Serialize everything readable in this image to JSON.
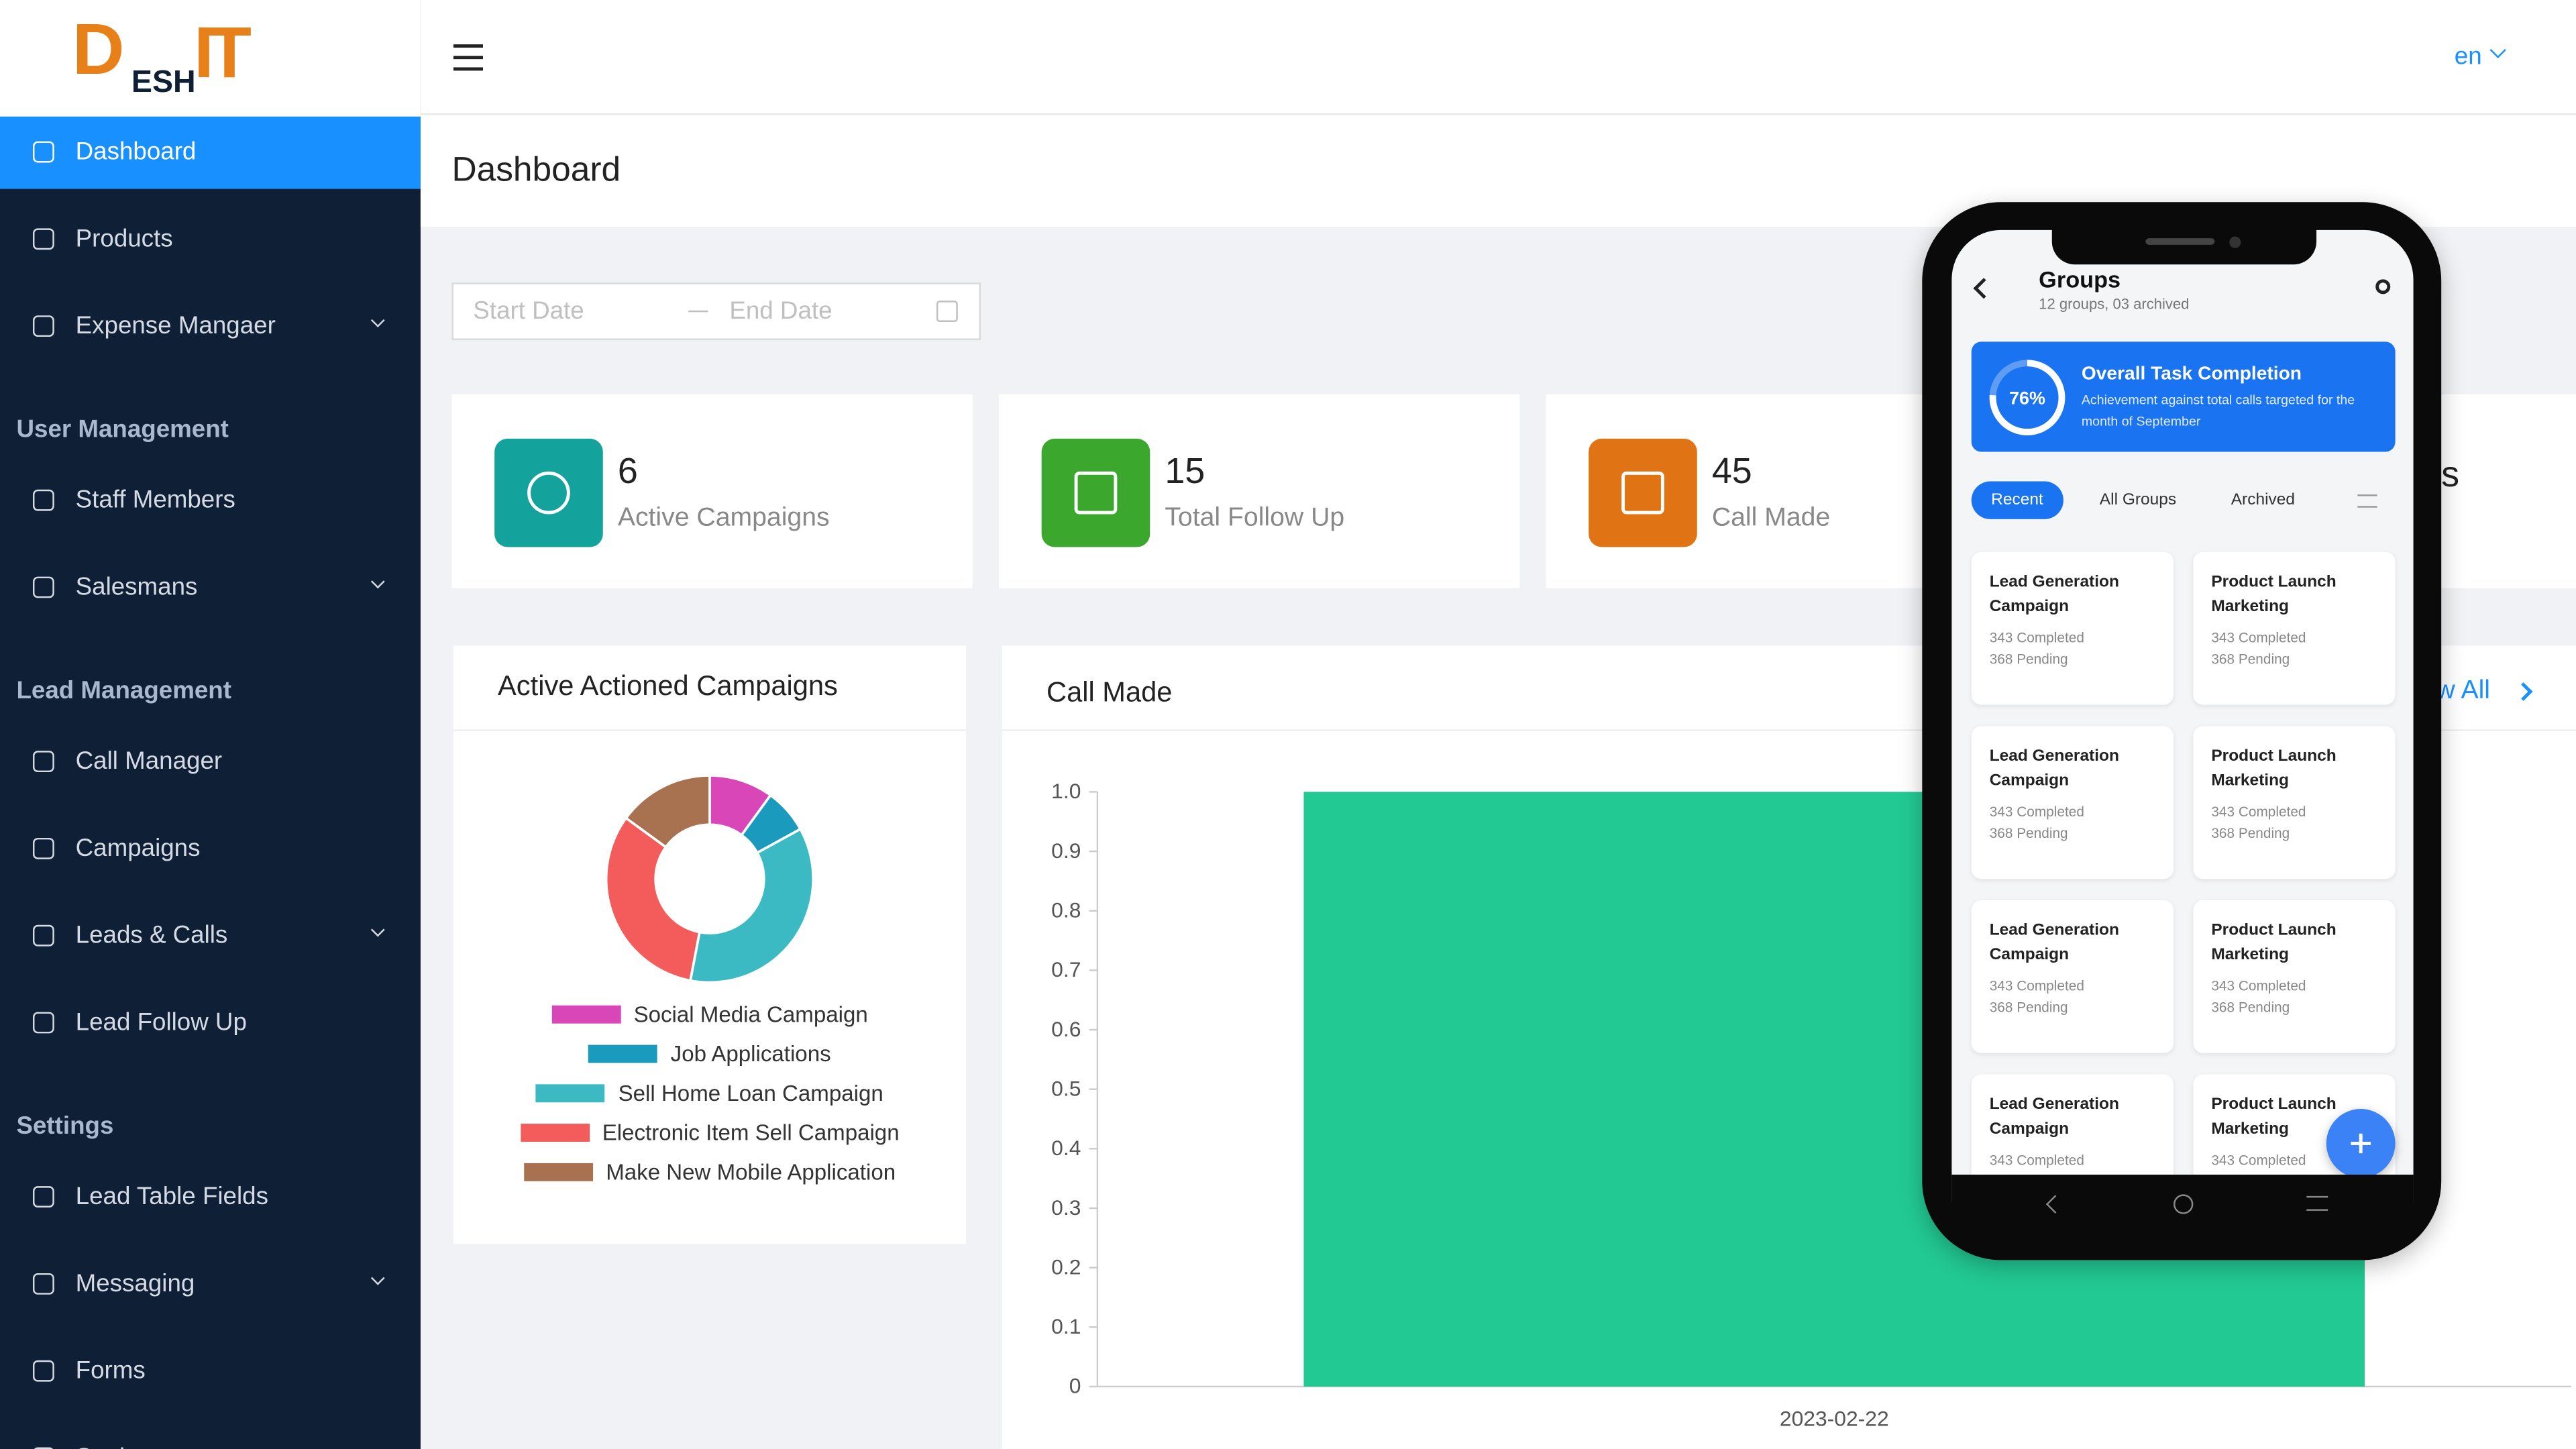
{
  "logo": {
    "mark": "D",
    "rest": "ESH",
    "suffix": "IT"
  },
  "sidebar": [
    {
      "items": [
        {
          "label": "Dashboard",
          "active": true
        },
        {
          "label": "Products"
        },
        {
          "label": "Expense Mangaer",
          "expandable": true
        }
      ]
    },
    {
      "section": "User Management",
      "items": [
        {
          "label": "Staff Members"
        },
        {
          "label": "Salesmans",
          "expandable": true
        }
      ]
    },
    {
      "section": "Lead Management",
      "items": [
        {
          "label": "Call Manager"
        },
        {
          "label": "Campaigns"
        },
        {
          "label": "Leads & Calls",
          "expandable": true
        },
        {
          "label": "Lead Follow Up"
        }
      ]
    },
    {
      "section": "Settings",
      "items": [
        {
          "label": "Lead Table Fields"
        },
        {
          "label": "Messaging",
          "expandable": true
        },
        {
          "label": "Forms"
        },
        {
          "label": "Settings"
        }
      ]
    }
  ],
  "header": {
    "language": "en"
  },
  "page_title": "Dashboard",
  "date_range": {
    "start": "Start Date",
    "end": "End Date"
  },
  "stats": [
    {
      "value": 6,
      "label": "Active Campaigns",
      "color": "#14a39c"
    },
    {
      "value": 15,
      "label": "Total Follow Up",
      "color": "#3ba72c"
    },
    {
      "value": 45,
      "label": "Call Made",
      "color": "#e07314"
    }
  ],
  "stats_partial_label": "s",
  "chart_data": [
    {
      "type": "donut",
      "title": "Active Actioned Campaigns",
      "categories": [
        "Social Media Campaign",
        "Job Applications",
        "Sell Home Loan Campaign",
        "Electronic Item Sell Campaign",
        "Make New Mobile Application"
      ],
      "values": [
        10,
        7,
        36,
        32,
        15
      ],
      "colors": [
        "#d946b8",
        "#1a9bbd",
        "#3bbac3",
        "#f45b5b",
        "#a8714f"
      ]
    },
    {
      "type": "bar",
      "title": "Call Made",
      "link": "View All",
      "categories": [
        "2023-02-22"
      ],
      "values": [
        1
      ],
      "color": "#22c993",
      "ylim": [
        0,
        1
      ],
      "yticks": [
        0,
        0.1,
        0.2,
        0.3,
        0.4,
        0.5,
        0.6,
        0.7,
        0.8,
        0.9,
        {
          "value": 1,
          "label": "1.0"
        }
      ]
    }
  ],
  "phone": {
    "title": "Groups",
    "subtitle": "12 groups, 03 archived",
    "banner": {
      "progress": {
        "value": 76,
        "label": "76%"
      },
      "title": "Overall Task Completion",
      "text": "Achievement against total calls targeted for the month of September"
    },
    "tabs": [
      "Recent",
      "All Groups",
      "Archived"
    ],
    "groups": [
      {
        "title": "Lead Generation Campaign",
        "completed": "343 Completed",
        "pending": "368 Pending"
      },
      {
        "title": "Product Launch Marketing",
        "completed": "343 Completed",
        "pending": "368 Pending"
      },
      {
        "title": "Lead Generation Campaign",
        "completed": "343 Completed",
        "pending": "368 Pending"
      },
      {
        "title": "Product Launch Marketing",
        "completed": "343 Completed",
        "pending": "368 Pending"
      },
      {
        "title": "Lead Generation Campaign",
        "completed": "343 Completed",
        "pending": "368 Pending"
      },
      {
        "title": "Product Launch Marketing",
        "completed": "343 Completed",
        "pending": "368 Pending"
      },
      {
        "title": "Lead Generation Campaign",
        "completed": "343 Completed"
      },
      {
        "title": "Product Launch Marketing",
        "completed": "343 Completed"
      }
    ]
  }
}
